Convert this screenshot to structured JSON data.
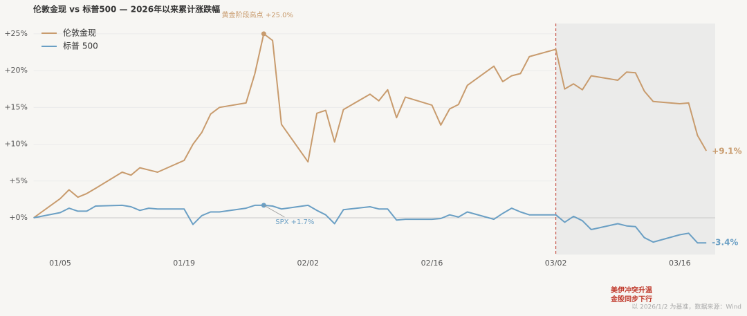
{
  "chart_data": {
    "type": "line",
    "title": "伦敦金现 vs 标普500 — 2026年以来累计涨跌幅",
    "x": [
      "01/02",
      "01/05",
      "01/06",
      "01/07",
      "01/08",
      "01/09",
      "01/12",
      "01/13",
      "01/14",
      "01/15",
      "01/16",
      "01/19",
      "01/20",
      "01/21",
      "01/22",
      "01/23",
      "01/26",
      "01/27",
      "01/28",
      "01/29",
      "01/30",
      "02/02",
      "02/03",
      "02/04",
      "02/05",
      "02/06",
      "02/09",
      "02/10",
      "02/11",
      "02/12",
      "02/13",
      "02/16",
      "02/17",
      "02/18",
      "02/19",
      "02/20",
      "02/23",
      "02/24",
      "02/25",
      "02/26",
      "02/27",
      "03/02",
      "03/03",
      "03/04",
      "03/05",
      "03/06",
      "03/09",
      "03/10",
      "03/11",
      "03/12",
      "03/13",
      "03/16",
      "03/17",
      "03/18",
      "03/19"
    ],
    "series": [
      {
        "name": "伦敦金现",
        "color": "#c89b6d",
        "values": [
          0,
          2.6,
          3.8,
          2.8,
          3.3,
          4.0,
          6.2,
          5.8,
          6.8,
          6.5,
          6.2,
          7.8,
          10.0,
          11.6,
          14.1,
          15.0,
          15.6,
          19.6,
          25.0,
          24.1,
          12.7,
          7.6,
          14.2,
          14.6,
          10.3,
          14.7,
          16.8,
          15.9,
          17.4,
          13.6,
          16.4,
          15.3,
          12.6,
          14.8,
          15.4,
          18.0,
          20.6,
          18.5,
          19.3,
          19.6,
          21.9,
          22.9,
          17.5,
          18.2,
          17.4,
          19.3,
          18.7,
          19.8,
          19.7,
          17.2,
          15.8,
          15.5,
          15.6,
          11.2,
          9.1
        ]
      },
      {
        "name": "标普 500",
        "color": "#6a9fc4",
        "values": [
          0,
          0.7,
          1.3,
          0.9,
          0.9,
          1.6,
          1.7,
          1.5,
          1.0,
          1.3,
          1.2,
          1.2,
          -0.9,
          0.3,
          0.8,
          0.8,
          1.3,
          1.7,
          1.7,
          1.6,
          1.2,
          1.7,
          1.0,
          0.4,
          -0.8,
          1.1,
          1.5,
          1.2,
          1.2,
          -0.3,
          -0.2,
          -0.2,
          -0.1,
          0.4,
          0.1,
          0.8,
          -0.2,
          0.6,
          1.3,
          0.8,
          0.4,
          0.4,
          -0.6,
          0.2,
          -0.4,
          -1.6,
          -0.8,
          -1.1,
          -1.2,
          -2.7,
          -3.3,
          -2.3,
          -2.1,
          -3.4,
          -3.4
        ]
      }
    ],
    "xlim": [
      "01/02",
      "03/20"
    ],
    "xticks": [
      "01/05",
      "01/19",
      "02/02",
      "02/16",
      "03/02",
      "03/16"
    ],
    "ylim": [
      -5,
      26.4
    ],
    "yticks": [
      {
        "value": 0,
        "label": "+0%"
      },
      {
        "value": 5,
        "label": "+5%"
      },
      {
        "value": 10,
        "label": "+10%"
      },
      {
        "value": 15,
        "label": "+15%"
      },
      {
        "value": 20,
        "label": "+20%"
      },
      {
        "value": 25,
        "label": "+25%"
      }
    ],
    "grid": true,
    "legend": "upper left",
    "annotations": [
      {
        "text": "黄金阶段高点 +25.0%",
        "x": "01/28",
        "y": 25.0,
        "series": 0
      },
      {
        "text": "SPX +1.7%",
        "x": "01/28",
        "y": 1.7,
        "series": 1
      },
      {
        "text": "+9.1%",
        "x": "03/19",
        "y": 9.1,
        "series": 0
      },
      {
        "text": "-3.4%",
        "x": "03/19",
        "y": -3.4,
        "series": 1
      }
    ],
    "event": {
      "x": "03/02",
      "label_lines": [
        "美伊冲突升温",
        "金股同步下行"
      ],
      "color": "#c0392b"
    },
    "footnote": "以 2026/1/2 为基准，数据来源：Wind"
  }
}
